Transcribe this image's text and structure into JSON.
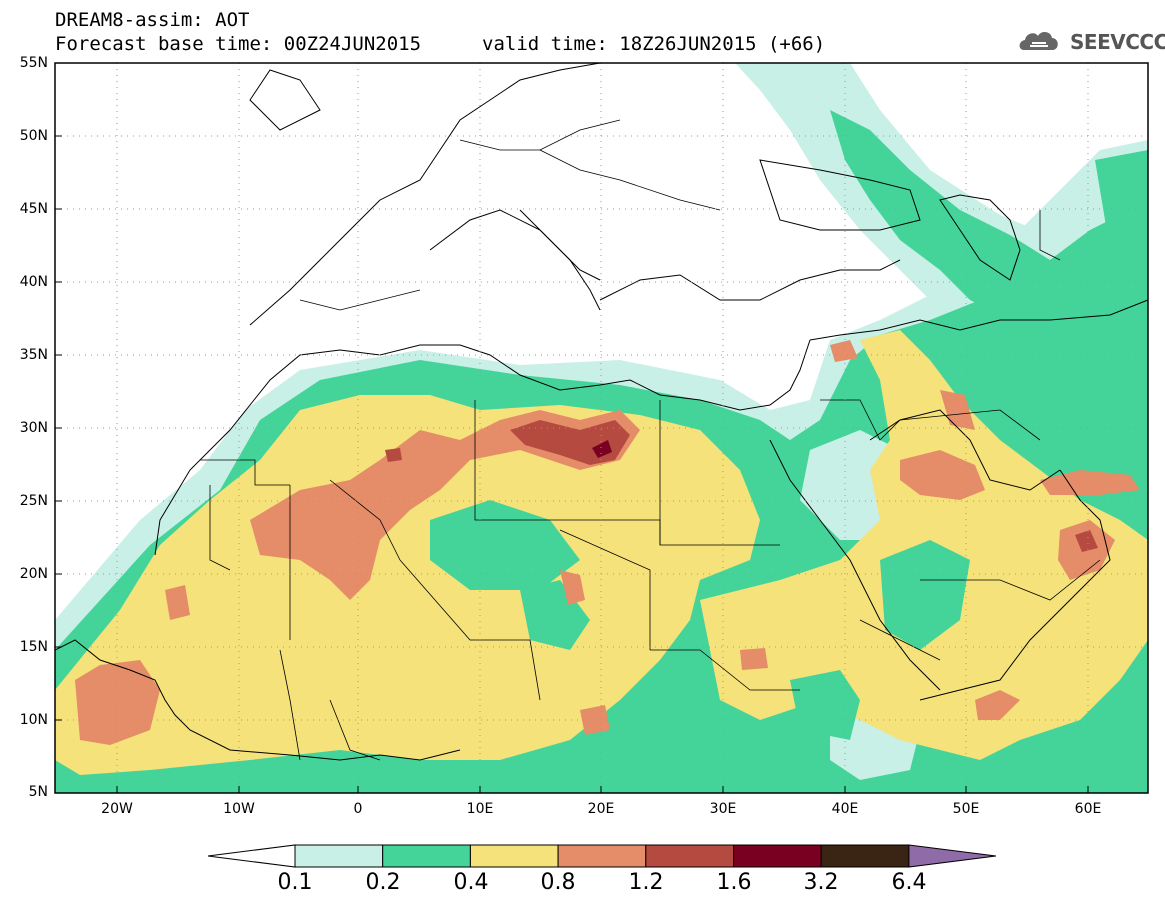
{
  "header": {
    "title_line1": "DREAM8-assim: AOT",
    "title_line2": "Forecast base time: 00Z24JUN2015",
    "title_line3": "valid time: 18Z26JUN2015 (+66)",
    "logo_text": "SEEVCCC"
  },
  "axes": {
    "lat_labels": [
      "55N",
      "50N",
      "45N",
      "40N",
      "35N",
      "30N",
      "25N",
      "20N",
      "15N",
      "10N",
      "5N"
    ],
    "lon_labels": [
      "20W",
      "10W",
      "0",
      "10E",
      "20E",
      "30E",
      "40E",
      "50E",
      "60E"
    ]
  },
  "colorbar": {
    "levels": [
      "0.1",
      "0.2",
      "0.4",
      "0.8",
      "1.2",
      "1.6",
      "3.2",
      "6.4"
    ],
    "colors": [
      "#ffffff",
      "#c8f0e6",
      "#44d49a",
      "#f5e27a",
      "#e58c68",
      "#b54a40",
      "#7a0022",
      "#3a2414",
      "#8f6ba8"
    ]
  },
  "map": {
    "domain": "North Africa, Middle East and Europe",
    "max_aot_region": "Libya (~28N 20E)"
  }
}
